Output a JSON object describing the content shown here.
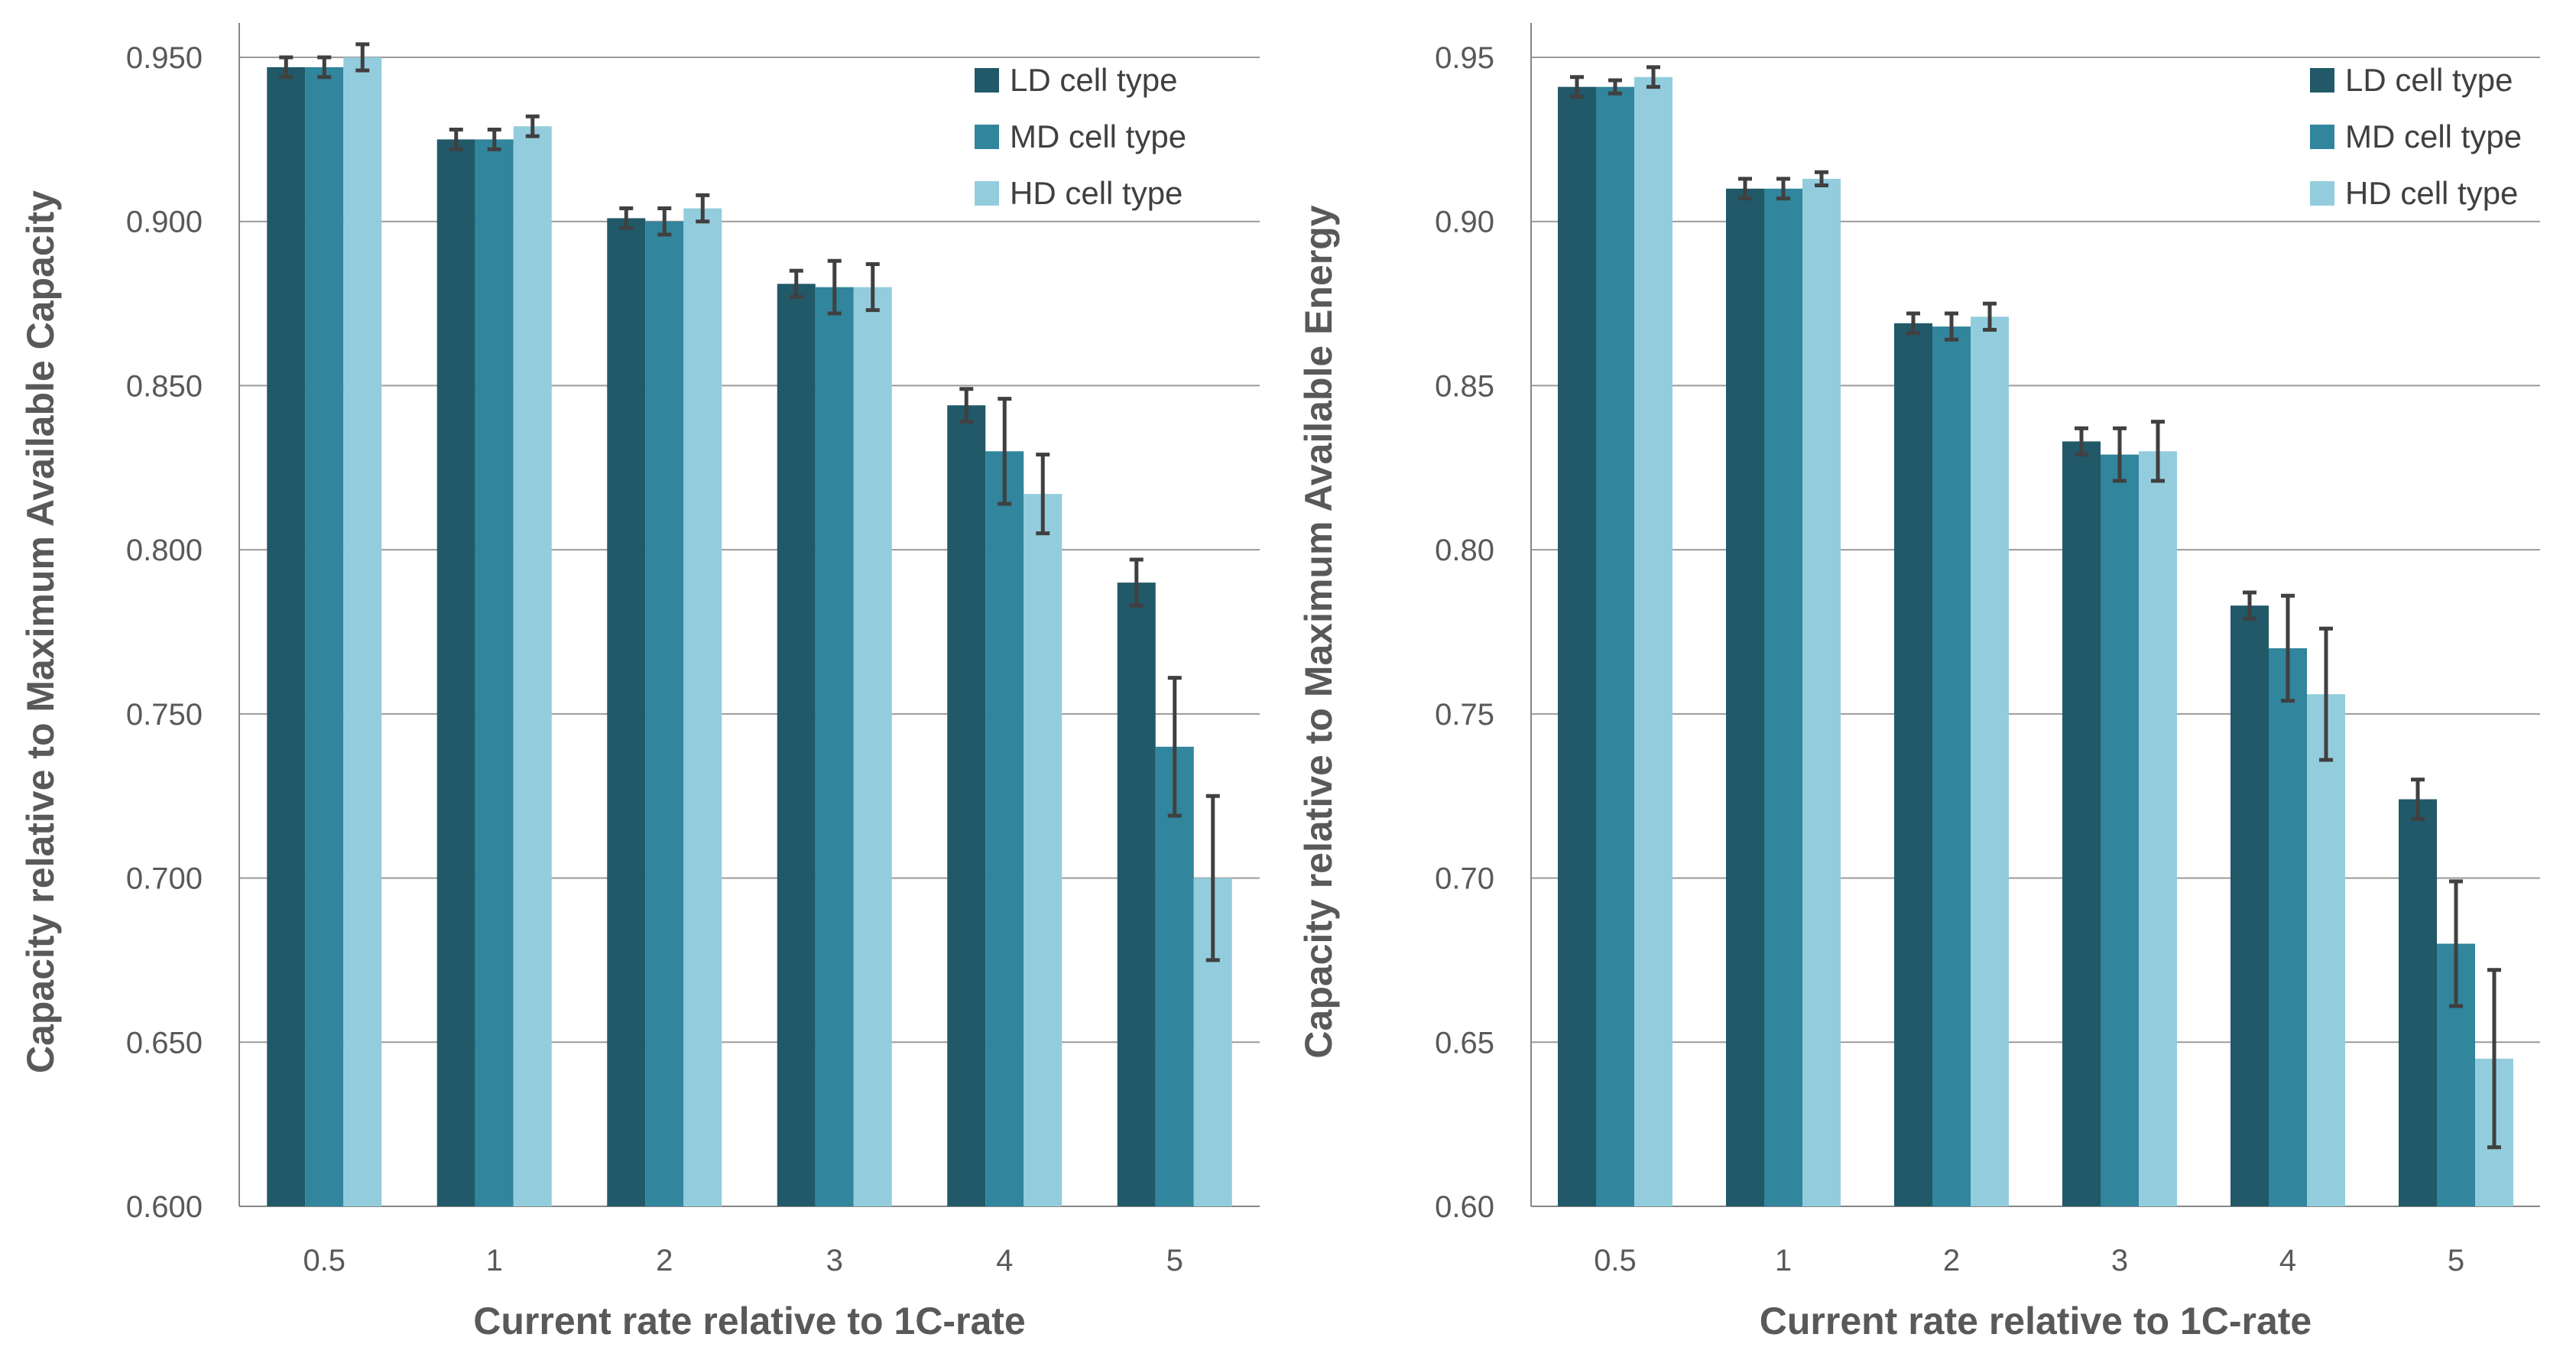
{
  "chart_data": [
    {
      "type": "bar",
      "title": "",
      "xlabel": "Current rate relative to 1C-rate",
      "ylabel": "Capacity relative to Maximum Available Capacity",
      "ylim": [
        0.6,
        0.95
      ],
      "yticks": [
        "0.600",
        "0.650",
        "0.700",
        "0.750",
        "0.800",
        "0.850",
        "0.900",
        "0.950"
      ],
      "categories": [
        "0.5",
        "1",
        "2",
        "3",
        "4",
        "5"
      ],
      "grid": true,
      "legend_position": "top-right",
      "series": [
        {
          "name": "LD cell type",
          "color": "#215968",
          "values": [
            0.947,
            0.925,
            0.901,
            0.881,
            0.844,
            0.79
          ],
          "errors": [
            0.003,
            0.003,
            0.003,
            0.004,
            0.005,
            0.007
          ]
        },
        {
          "name": "MD cell type",
          "color": "#31859c",
          "values": [
            0.947,
            0.925,
            0.9,
            0.88,
            0.83,
            0.74
          ],
          "errors": [
            0.003,
            0.003,
            0.004,
            0.008,
            0.016,
            0.021
          ]
        },
        {
          "name": "HD cell type",
          "color": "#93cddd",
          "values": [
            0.95,
            0.929,
            0.904,
            0.88,
            0.817,
            0.7
          ],
          "errors": [
            0.004,
            0.003,
            0.004,
            0.007,
            0.012,
            0.025
          ]
        }
      ]
    },
    {
      "type": "bar",
      "title": "",
      "xlabel": "Current rate relative to 1C-rate",
      "ylabel": "Capacity relative to Maximum Available Energy",
      "ylim": [
        0.6,
        0.95
      ],
      "yticks": [
        "0.60",
        "0.65",
        "0.70",
        "0.75",
        "0.80",
        "0.85",
        "0.90",
        "0.95"
      ],
      "categories": [
        "0.5",
        "1",
        "2",
        "3",
        "4",
        "5"
      ],
      "grid": true,
      "legend_position": "top-right",
      "series": [
        {
          "name": "LD cell type",
          "color": "#215968",
          "values": [
            0.941,
            0.91,
            0.869,
            0.833,
            0.783,
            0.724
          ],
          "errors": [
            0.003,
            0.003,
            0.003,
            0.004,
            0.004,
            0.006
          ]
        },
        {
          "name": "MD cell type",
          "color": "#31859c",
          "values": [
            0.941,
            0.91,
            0.868,
            0.829,
            0.77,
            0.68
          ],
          "errors": [
            0.002,
            0.003,
            0.004,
            0.008,
            0.016,
            0.019
          ]
        },
        {
          "name": "HD cell type",
          "color": "#93cddd",
          "values": [
            0.944,
            0.913,
            0.871,
            0.83,
            0.756,
            0.645
          ],
          "errors": [
            0.003,
            0.002,
            0.004,
            0.009,
            0.02,
            0.027
          ]
        }
      ]
    }
  ]
}
